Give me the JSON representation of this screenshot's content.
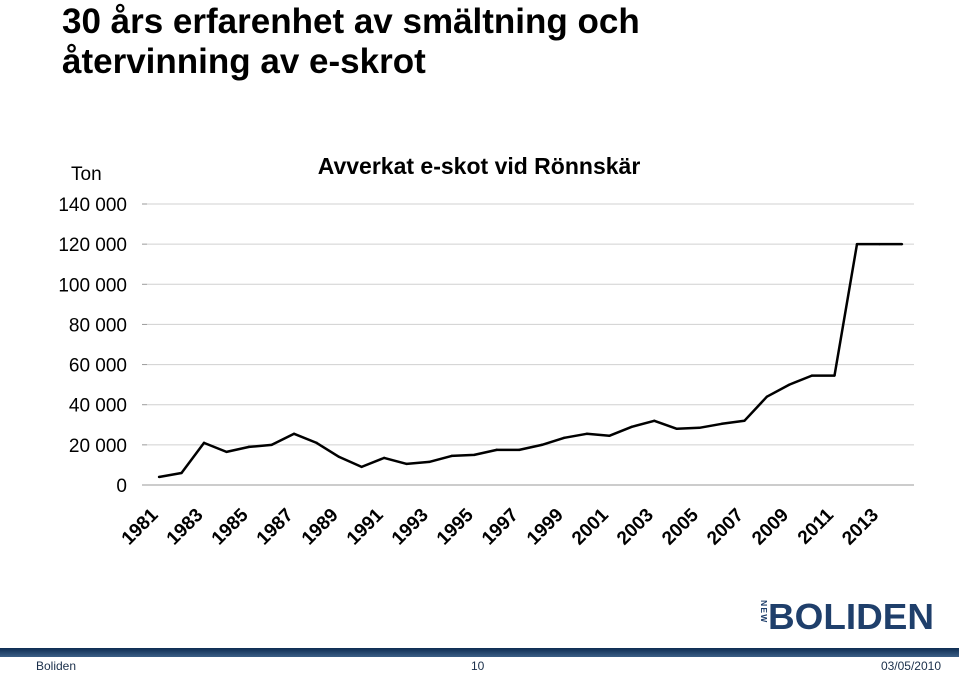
{
  "slide": {
    "title_lines": [
      "30 års erfarenhet av smältning och",
      "återvinning av e-skrot"
    ]
  },
  "chart_data": {
    "type": "line",
    "title": "Avverkat e-skot vid Rönnskär",
    "ylabel": "Ton",
    "xlabel": "",
    "ylim": [
      0,
      140000
    ],
    "yticks": [
      0,
      20000,
      40000,
      60000,
      80000,
      100000,
      120000,
      140000
    ],
    "ytick_labels": [
      "0",
      "20 000",
      "40 000",
      "60 000",
      "80 000",
      "100 000",
      "120 000",
      "140 000"
    ],
    "x_tick_labels": [
      "1981",
      "1983",
      "1985",
      "1987",
      "1989",
      "1991",
      "1993",
      "1995",
      "1997",
      "1999",
      "2001",
      "2003",
      "2005",
      "2007",
      "2009",
      "2011",
      "2013"
    ],
    "grid": true,
    "line_color": "#000000",
    "x": [
      1981,
      1982,
      1983,
      1984,
      1985,
      1986,
      1987,
      1988,
      1989,
      1990,
      1991,
      1992,
      1993,
      1994,
      1995,
      1996,
      1997,
      1998,
      1999,
      2000,
      2001,
      2002,
      2003,
      2004,
      2005,
      2006,
      2007,
      2008,
      2009,
      2010,
      2011,
      2012,
      2013,
      2014
    ],
    "values": [
      4000,
      6000,
      21000,
      16500,
      19000,
      20000,
      25500,
      21000,
      14000,
      9000,
      13500,
      10500,
      11500,
      14500,
      15000,
      17500,
      17500,
      20000,
      23500,
      25500,
      24500,
      29000,
      32000,
      28000,
      28500,
      30500,
      32000,
      44000,
      50000,
      54500,
      54500,
      120000,
      120000,
      120000
    ]
  },
  "logo": {
    "prefix": "NEW",
    "name": "BOLIDEN"
  },
  "footer": {
    "left": "Boliden",
    "page": "10",
    "date": "03/05/2010",
    "band_color": "#0d2c52"
  }
}
